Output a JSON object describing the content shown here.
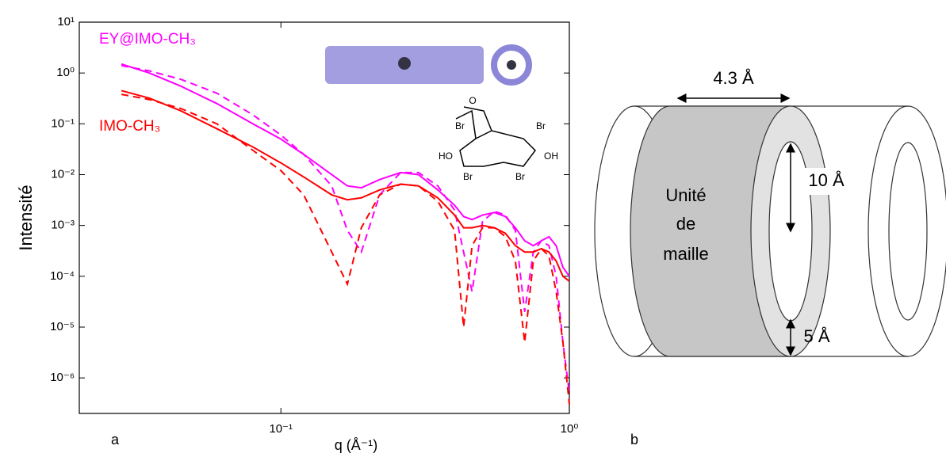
{
  "chart_data": {
    "type": "line",
    "x_label": "q (Å⁻¹)",
    "y_label": "Intensité",
    "panel_label": "a",
    "xscale": "log",
    "yscale": "log",
    "xlim": [
      0.02,
      1
    ],
    "ylim": [
      2e-07,
      10
    ],
    "xticks": [
      {
        "value": 0.1,
        "label": "10⁻¹"
      },
      {
        "value": 1,
        "label": "10⁰"
      }
    ],
    "yticks": [
      {
        "value": 1e-06,
        "label": "10⁻⁶"
      },
      {
        "value": 1e-05,
        "label": "10⁻⁵"
      },
      {
        "value": 0.0001,
        "label": "10⁻⁴"
      },
      {
        "value": 0.001,
        "label": "10⁻³"
      },
      {
        "value": 0.01,
        "label": "10⁻²"
      },
      {
        "value": 0.1,
        "label": "10⁻¹"
      },
      {
        "value": 1,
        "label": "10⁰"
      },
      {
        "value": 10,
        "label": "10¹"
      }
    ],
    "x": [
      0.028,
      0.035,
      0.045,
      0.06,
      0.08,
      0.1,
      0.12,
      0.15,
      0.17,
      0.19,
      0.22,
      0.26,
      0.3,
      0.35,
      0.4,
      0.43,
      0.46,
      0.5,
      0.55,
      0.6,
      0.65,
      0.7,
      0.75,
      0.8,
      0.85,
      0.9,
      0.95,
      1.0
    ],
    "series": [
      {
        "name": "EY@IMO-CH₃",
        "color": "#ff00ff",
        "dash": false,
        "values": [
          1.5,
          1.0,
          0.55,
          0.25,
          0.1,
          0.05,
          0.025,
          0.01,
          0.006,
          0.0055,
          0.008,
          0.011,
          0.01,
          0.005,
          0.0025,
          0.0015,
          0.0013,
          0.0016,
          0.0018,
          0.0015,
          0.0009,
          0.0005,
          0.0004,
          0.0005,
          0.0006,
          0.0004,
          0.00015,
          0.0001
        ]
      },
      {
        "color": "#ff00ff",
        "dash": true,
        "values": [
          1.4,
          1.1,
          0.75,
          0.4,
          0.15,
          0.06,
          0.025,
          0.006,
          0.0008,
          0.0003,
          0.004,
          0.011,
          0.011,
          0.006,
          0.002,
          0.0003,
          5e-05,
          0.0012,
          0.0019,
          0.0016,
          0.0008,
          2e-05,
          0.0003,
          0.0005,
          0.0004,
          0.0001,
          5e-06,
          5e-07
        ]
      },
      {
        "name": "IMO-CH₃",
        "color": "#ff0000",
        "dash": false,
        "values": [
          0.45,
          0.32,
          0.18,
          0.08,
          0.035,
          0.017,
          0.009,
          0.004,
          0.0032,
          0.0035,
          0.005,
          0.0065,
          0.006,
          0.0035,
          0.0016,
          0.0009,
          0.0009,
          0.001,
          0.0009,
          0.0007,
          0.0004,
          0.0003,
          0.0003,
          0.00035,
          0.0003,
          0.0002,
          0.0001,
          8e-05
        ]
      },
      {
        "color": "#ff0000",
        "dash": true,
        "values": [
          0.38,
          0.3,
          0.2,
          0.1,
          0.03,
          0.012,
          0.004,
          0.0003,
          7e-05,
          0.0009,
          0.004,
          0.0065,
          0.006,
          0.003,
          0.0008,
          1e-05,
          0.0004,
          0.0009,
          0.0009,
          0.0006,
          0.0002,
          5e-06,
          0.0002,
          0.00035,
          0.00025,
          5e-05,
          5e-06,
          3e-07
        ]
      }
    ],
    "inset_labels": [
      "O",
      "Br",
      "Br",
      "HO",
      "OH",
      "Br",
      "Br"
    ]
  },
  "diagram": {
    "panel_label": "b",
    "length_label": "4.3 Å",
    "inner_diameter_label": "10 Å",
    "wall_label": "5 Å",
    "cell_label": [
      "Unité",
      "de",
      "maille"
    ]
  }
}
